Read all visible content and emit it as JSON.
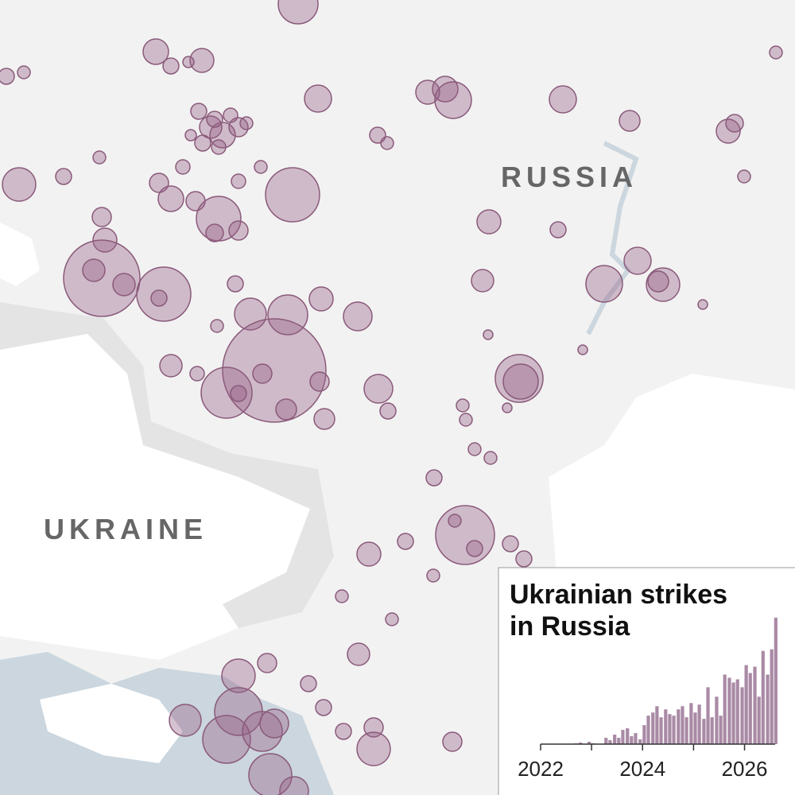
{
  "labels": {
    "russia": "RUSSIA",
    "ukraine": "UKRAINE"
  },
  "chart_data": {
    "type": "bar",
    "title": "Ukrainian strikes in Russia",
    "color": "#a98aa5",
    "x": [
      2022.0,
      2022.08,
      2022.17,
      2022.25,
      2022.33,
      2022.42,
      2022.5,
      2022.58,
      2022.67,
      2022.75,
      2022.83,
      2022.92,
      2023.0,
      2023.08,
      2023.17,
      2023.25,
      2023.33,
      2023.42,
      2023.5,
      2023.58,
      2023.67,
      2023.75,
      2023.83,
      2023.92,
      2024.0,
      2024.08,
      2024.17,
      2024.25,
      2024.33,
      2024.42,
      2024.5,
      2024.58,
      2024.67,
      2024.75,
      2024.83,
      2024.92,
      2025.0,
      2025.08,
      2025.17,
      2025.25,
      2025.33,
      2025.42,
      2025.5,
      2025.58,
      2025.67,
      2025.75,
      2025.83,
      2025.92,
      2026.0,
      2026.08,
      2026.17,
      2026.25,
      2026.33,
      2026.42,
      2026.5,
      2026.58
    ],
    "values": [
      0,
      0,
      0,
      0,
      0,
      0,
      0,
      0,
      1,
      2,
      0,
      3,
      1,
      0,
      0,
      8,
      5,
      12,
      8,
      18,
      20,
      10,
      14,
      6,
      24,
      36,
      40,
      48,
      34,
      44,
      38,
      36,
      44,
      48,
      34,
      52,
      40,
      50,
      32,
      72,
      34,
      60,
      36,
      88,
      84,
      78,
      82,
      72,
      100,
      90,
      98,
      60,
      118,
      88,
      120,
      160
    ],
    "xlim": [
      2022,
      2026.6
    ],
    "ylim": [
      0,
      165
    ],
    "xticks": [
      2022,
      2024,
      2026
    ],
    "minor_xticks": [
      2023,
      2025
    ]
  }
}
